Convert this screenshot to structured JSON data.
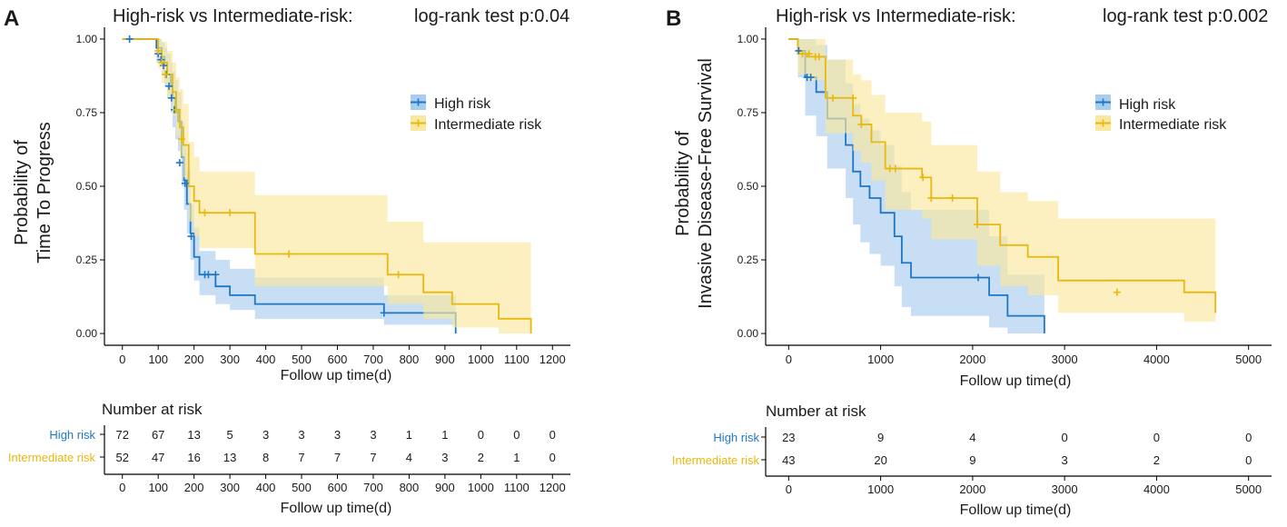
{
  "colors": {
    "high": "#1f77c4",
    "intermediate": "#e8b80e",
    "high_fill": "#a9cdee",
    "intermediate_fill": "#fbe8a0"
  },
  "chart_data": [
    {
      "type": "line",
      "panel_label": "A",
      "title": "High-risk vs Intermediate-risk:",
      "pvalue": "log-rank test p:0.04",
      "ylabel": [
        "Probability of",
        "Time To Progress"
      ],
      "xlabel": "Follow up time(d)",
      "xlim": [
        -50,
        1250
      ],
      "ylim": [
        -0.04,
        1.04
      ],
      "xticks": [
        0,
        100,
        200,
        300,
        400,
        500,
        600,
        700,
        800,
        900,
        1000,
        1100,
        1200
      ],
      "yticks": [
        0,
        0.25,
        0.5,
        0.75,
        1.0
      ],
      "ytick_labels": [
        "0.00",
        "0.25",
        "0.50",
        "0.75",
        "1.00"
      ],
      "legend": [
        "High risk",
        "Intermediate risk"
      ],
      "series": [
        {
          "name": "High risk",
          "x": [
            0,
            95,
            110,
            118,
            125,
            135,
            140,
            148,
            155,
            165,
            172,
            180,
            190,
            200,
            215,
            260,
            300,
            370,
            730,
            930
          ],
          "y": [
            1.0,
            0.97,
            0.94,
            0.91,
            0.88,
            0.84,
            0.8,
            0.76,
            0.72,
            0.6,
            0.52,
            0.44,
            0.34,
            0.26,
            0.2,
            0.16,
            0.13,
            0.1,
            0.07,
            0.0
          ],
          "lower": [
            1.0,
            0.92,
            0.88,
            0.84,
            0.8,
            0.75,
            0.7,
            0.66,
            0.62,
            0.5,
            0.42,
            0.34,
            0.25,
            0.18,
            0.13,
            0.1,
            0.08,
            0.05,
            0.03,
            0.0
          ],
          "upper": [
            1.0,
            1.0,
            0.99,
            0.97,
            0.95,
            0.92,
            0.89,
            0.86,
            0.82,
            0.72,
            0.64,
            0.56,
            0.44,
            0.36,
            0.28,
            0.25,
            0.22,
            0.19,
            0.13,
            0.13
          ],
          "censor_x": [
            20,
            100,
            108,
            115,
            122,
            130,
            137,
            145,
            160,
            175,
            192,
            230,
            240,
            260,
            730
          ],
          "censor_y": [
            1.0,
            0.95,
            0.93,
            0.91,
            0.88,
            0.84,
            0.8,
            0.76,
            0.58,
            0.51,
            0.33,
            0.2,
            0.2,
            0.2,
            0.07
          ]
        },
        {
          "name": "Intermediate risk",
          "x": [
            0,
            100,
            110,
            125,
            140,
            150,
            160,
            170,
            185,
            200,
            215,
            240,
            370,
            740,
            840,
            920,
            1050,
            1140
          ],
          "y": [
            1.0,
            0.96,
            0.92,
            0.88,
            0.82,
            0.76,
            0.7,
            0.64,
            0.5,
            0.45,
            0.41,
            0.41,
            0.27,
            0.2,
            0.14,
            0.1,
            0.05,
            0.0
          ],
          "lower": [
            1.0,
            0.9,
            0.85,
            0.8,
            0.74,
            0.67,
            0.6,
            0.53,
            0.38,
            0.33,
            0.29,
            0.29,
            0.16,
            0.1,
            0.05,
            0.02,
            0.0,
            0.0
          ],
          "upper": [
            1.0,
            1.0,
            0.99,
            0.96,
            0.92,
            0.87,
            0.83,
            0.78,
            0.65,
            0.6,
            0.55,
            0.55,
            0.47,
            0.38,
            0.31,
            0.31,
            0.31,
            0.31
          ],
          "censor_x": [
            100,
            110,
            120,
            150,
            165,
            230,
            300,
            465,
            770
          ],
          "censor_y": [
            0.96,
            0.92,
            0.88,
            0.76,
            0.66,
            0.41,
            0.41,
            0.27,
            0.2
          ]
        }
      ],
      "risk_table": {
        "title": "Number at risk",
        "times": [
          0,
          100,
          200,
          300,
          400,
          500,
          600,
          700,
          800,
          900,
          1000,
          1100,
          1200
        ],
        "rows": [
          {
            "label": "High risk",
            "values": [
              "72",
              "67",
              "13",
              "5",
              "3",
              "3",
              "3",
              "3",
              "1",
              "1",
              "0",
              "0",
              "0"
            ]
          },
          {
            "label": "Intermediate risk",
            "values": [
              "52",
              "47",
              "16",
              "13",
              "8",
              "7",
              "7",
              "7",
              "4",
              "3",
              "2",
              "1",
              "0"
            ]
          }
        ],
        "xlabel": "Follow up time(d)"
      }
    },
    {
      "type": "line",
      "panel_label": "B",
      "title": "High-risk vs Intermediate-risk:",
      "pvalue": "log-rank test p:0.002",
      "ylabel": [
        "Probability of",
        "Invasive Disease-Free Survival"
      ],
      "xlabel": "Follow up time(d)",
      "xlim": [
        -250,
        5250
      ],
      "ylim": [
        -0.04,
        1.04
      ],
      "xticks": [
        0,
        1000,
        2000,
        3000,
        4000,
        5000
      ],
      "yticks": [
        0,
        0.25,
        0.5,
        0.75,
        1.0
      ],
      "ytick_labels": [
        "0.00",
        "0.25",
        "0.50",
        "0.75",
        "1.00"
      ],
      "legend": [
        "High risk",
        "Intermediate risk"
      ],
      "series": [
        {
          "name": "High risk",
          "x": [
            0,
            100,
            180,
            300,
            420,
            620,
            700,
            780,
            880,
            1000,
            1150,
            1230,
            1330,
            2180,
            2380,
            2780
          ],
          "y": [
            1.0,
            0.96,
            0.87,
            0.82,
            0.73,
            0.64,
            0.55,
            0.5,
            0.46,
            0.41,
            0.33,
            0.24,
            0.19,
            0.13,
            0.06,
            0.0
          ],
          "lower": [
            1.0,
            0.87,
            0.74,
            0.67,
            0.56,
            0.46,
            0.37,
            0.31,
            0.27,
            0.23,
            0.16,
            0.09,
            0.06,
            0.02,
            0.0,
            0.0
          ],
          "upper": [
            1.0,
            1.0,
            1.0,
            0.98,
            0.93,
            0.85,
            0.78,
            0.73,
            0.69,
            0.64,
            0.57,
            0.48,
            0.42,
            0.33,
            0.2,
            0.2
          ],
          "censor_x": [
            110,
            200,
            240,
            2060
          ],
          "censor_y": [
            0.96,
            0.87,
            0.87,
            0.19
          ]
        },
        {
          "name": "Intermediate risk",
          "x": [
            0,
            100,
            200,
            400,
            700,
            790,
            900,
            1050,
            1450,
            1550,
            2050,
            2300,
            2600,
            2930,
            4300,
            4640
          ],
          "y": [
            1.0,
            0.95,
            0.94,
            0.8,
            0.74,
            0.71,
            0.65,
            0.56,
            0.53,
            0.46,
            0.37,
            0.3,
            0.26,
            0.18,
            0.14,
            0.07
          ],
          "lower": [
            1.0,
            0.88,
            0.86,
            0.68,
            0.62,
            0.58,
            0.52,
            0.42,
            0.39,
            0.32,
            0.23,
            0.16,
            0.13,
            0.07,
            0.04,
            0.0
          ],
          "upper": [
            1.0,
            1.0,
            1.0,
            0.93,
            0.88,
            0.86,
            0.81,
            0.75,
            0.72,
            0.64,
            0.55,
            0.48,
            0.45,
            0.39,
            0.39,
            0.39
          ],
          "censor_x": [
            150,
            220,
            290,
            330,
            480,
            700,
            790,
            1100,
            1160,
            1460,
            1550,
            1780,
            2050,
            3570
          ],
          "censor_y": [
            0.95,
            0.95,
            0.94,
            0.94,
            0.8,
            0.8,
            0.71,
            0.56,
            0.56,
            0.53,
            0.46,
            0.46,
            0.37,
            0.14
          ]
        }
      ],
      "risk_table": {
        "title": "Number at risk",
        "times": [
          0,
          1000,
          2000,
          3000,
          4000,
          5000
        ],
        "rows": [
          {
            "label": "High risk",
            "values": [
              "23",
              "9",
              "4",
              "0",
              "0",
              "0"
            ]
          },
          {
            "label": "Intermediate risk",
            "values": [
              "43",
              "20",
              "9",
              "3",
              "2",
              "0"
            ]
          }
        ],
        "xlabel": "Follow up time(d)"
      }
    }
  ]
}
